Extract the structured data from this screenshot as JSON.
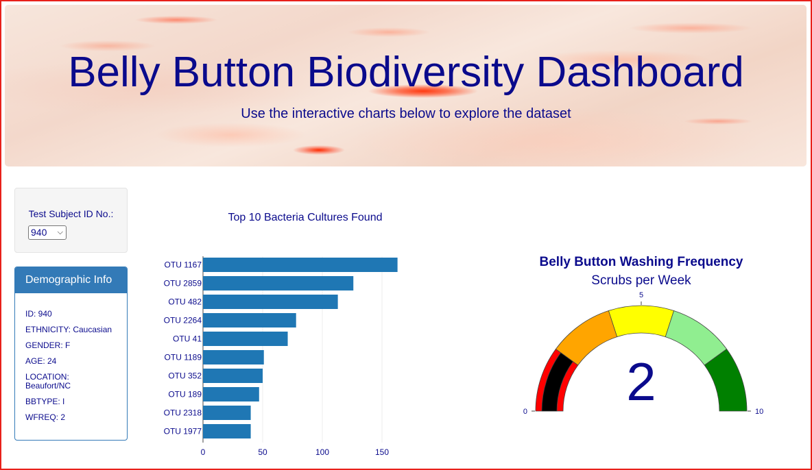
{
  "header": {
    "title": "Belly Button Biodiversity Dashboard",
    "subtitle": "Use the interactive charts below to explore the dataset"
  },
  "selector": {
    "label": "Test Subject ID No.:",
    "selected": "940"
  },
  "demographics": {
    "heading": "Demographic Info",
    "lines": [
      "ID: 940",
      "ETHNICITY: Caucasian",
      "GENDER: F",
      "AGE: 24",
      "LOCATION: Beaufort/NC",
      "BBTYPE: I",
      "WFREQ: 2"
    ]
  },
  "colors": {
    "title_text": "#0a0a8c",
    "bar": "#1f77b4",
    "panel": "#337ab7",
    "gauge_steps": [
      "#ff0000",
      "#ffa500",
      "#ffff00",
      "#90ee90",
      "#008000"
    ],
    "gauge_bar": "#000000",
    "frame": "#e8201b"
  },
  "chart_data": [
    {
      "type": "bar",
      "orientation": "horizontal",
      "title": "Top 10 Bacteria Cultures Found",
      "categories": [
        "OTU 1167",
        "OTU 2859",
        "OTU 482",
        "OTU 2264",
        "OTU 41",
        "OTU 1189",
        "OTU 352",
        "OTU 189",
        "OTU 2318",
        "OTU 1977"
      ],
      "values": [
        163,
        126,
        113,
        78,
        71,
        51,
        50,
        47,
        40,
        40
      ],
      "xlim": [
        0,
        165
      ],
      "xticks": [
        0,
        50,
        100,
        150
      ],
      "grid": true
    },
    {
      "type": "gauge",
      "title": "Belly Button Washing Frequency",
      "subtitle": "Scrubs per Week",
      "value": 2,
      "range": [
        0,
        10
      ],
      "ticks": [
        0,
        5,
        10
      ],
      "steps": [
        [
          0,
          2
        ],
        [
          2,
          4
        ],
        [
          4,
          6
        ],
        [
          6,
          8
        ],
        [
          8,
          10
        ]
      ]
    }
  ]
}
